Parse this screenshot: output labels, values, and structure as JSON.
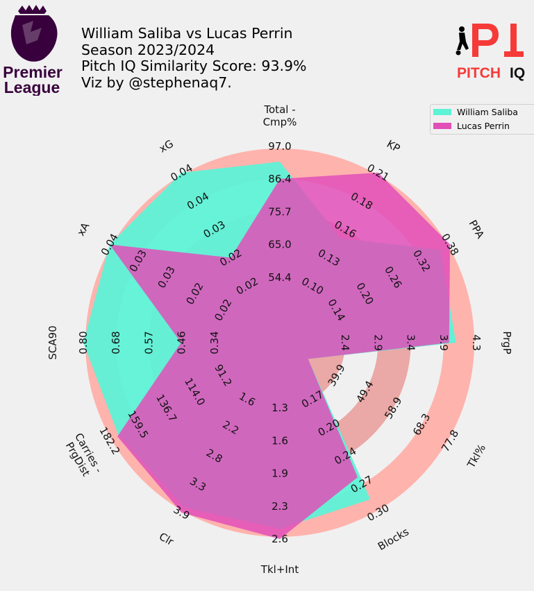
{
  "header": {
    "lines": [
      "William Saliba vs Lucas Perrin",
      "Season 2023/2024",
      "Pitch IQ Similarity Score: 93.9%",
      "Viz by @stephenaq7."
    ]
  },
  "logos": {
    "league_line1": "Premier",
    "league_line2": "League",
    "brand_short": "PI",
    "brand_word1": "PITCH",
    "brand_word2": "IQ"
  },
  "colors": {
    "background": "#f0f0f0",
    "ring_light": "#ffb3ad",
    "ring_inner": "#eaa8a6",
    "player1": "#5ef2d6",
    "player2": "#e24fb8",
    "league_purple": "#38003c",
    "brand_red": "#f63a38"
  },
  "chart_data": {
    "type": "radar",
    "legend_position": "top-right",
    "series": [
      {
        "name": "William Saliba",
        "color": "#5ef2d6",
        "values": [
          92.0,
          0.15,
          0.36,
          4.0,
          3.9,
          0.285,
          2.5,
          3.8,
          175.0,
          0.83,
          0.041,
          0.043
        ]
      },
      {
        "name": "Lucas Perrin",
        "color": "#e24fb8",
        "values": [
          86.4,
          0.21,
          0.4,
          3.9,
          3.0,
          0.26,
          2.6,
          3.9,
          176.0,
          0.46,
          0.042,
          0.022
        ]
      }
    ],
    "axes": [
      {
        "label": "Total - Cmp%",
        "min": 43.7,
        "max": 97.0,
        "ticks": [
          "54.4",
          "65.0",
          "75.7",
          "86.4",
          "97.0"
        ]
      },
      {
        "label": "KP",
        "min": 0.08,
        "max": 0.21,
        "ticks": [
          "0.10",
          "0.13",
          "0.16",
          "0.18",
          "0.21"
        ]
      },
      {
        "label": "PPA",
        "min": 0.08,
        "max": 0.38,
        "ticks": [
          "0.14",
          "0.20",
          "0.26",
          "0.32",
          "0.38"
        ]
      },
      {
        "label": "PrgP",
        "min": 1.9,
        "max": 4.3,
        "ticks": [
          "2.4",
          "2.9",
          "3.4",
          "3.9",
          "4.3"
        ]
      },
      {
        "label": "Tkl%",
        "min": 30.4,
        "max": 77.8,
        "ticks": [
          "39.9",
          "49.4",
          "58.9",
          "68.3",
          "77.8"
        ]
      },
      {
        "label": "Blocks",
        "min": 0.14,
        "max": 0.3,
        "ticks": [
          "0.17",
          "0.20",
          "0.24",
          "0.27",
          "0.30"
        ]
      },
      {
        "label": "Tkl+Int",
        "min": 1.0,
        "max": 2.6,
        "ticks": [
          "1.3",
          "1.6",
          "1.9",
          "2.3",
          "2.6"
        ]
      },
      {
        "label": "Clr",
        "min": 1.1,
        "max": 3.9,
        "ticks": [
          "1.6",
          "2.2",
          "2.8",
          "3.3",
          "3.9"
        ]
      },
      {
        "label": "Carries - PrgDist",
        "min": 68.4,
        "max": 182.2,
        "ticks": [
          "91.2",
          "114.0",
          "136.7",
          "159.5",
          "182.2"
        ]
      },
      {
        "label": "SCA90",
        "min": 0.23,
        "max": 0.8,
        "ticks": [
          "0.34",
          "0.46",
          "0.57",
          "0.68",
          "0.80"
        ]
      },
      {
        "label": "xA",
        "min": 0.01,
        "max": 0.04,
        "ticks": [
          "0.02",
          "0.02",
          "0.03",
          "0.03",
          "0.04"
        ]
      },
      {
        "label": "xG",
        "min": 0.01,
        "max": 0.04,
        "ticks": [
          "0.02",
          "0.02",
          "0.03",
          "0.04",
          "0.04"
        ]
      }
    ]
  }
}
